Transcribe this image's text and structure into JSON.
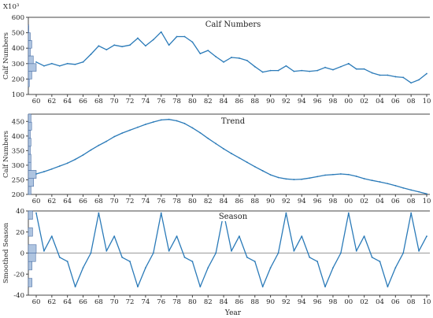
{
  "chart_data": [
    {
      "type": "line",
      "title": "Calf Numbers",
      "ylabel": "Calf Numbers",
      "multiplier_label": "X10³",
      "ylim": [
        100,
        600
      ],
      "yticks": [
        100,
        200,
        300,
        400,
        500,
        600
      ],
      "x": [
        1960,
        1961,
        1962,
        1963,
        1964,
        1965,
        1966,
        1967,
        1968,
        1969,
        1970,
        1971,
        1972,
        1973,
        1974,
        1975,
        1976,
        1977,
        1978,
        1979,
        1980,
        1981,
        1982,
        1983,
        1984,
        1985,
        1986,
        1987,
        1988,
        1989,
        1990,
        1991,
        1992,
        1993,
        1994,
        1995,
        1996,
        1997,
        1998,
        1999,
        2000,
        2001,
        2002,
        2003,
        2004,
        2005,
        2006,
        2007,
        2008,
        2009,
        2010
      ],
      "values": [
        310,
        285,
        300,
        285,
        300,
        295,
        310,
        360,
        415,
        390,
        420,
        410,
        420,
        465,
        415,
        455,
        505,
        420,
        475,
        475,
        440,
        365,
        385,
        345,
        310,
        340,
        335,
        320,
        280,
        245,
        255,
        255,
        285,
        250,
        255,
        250,
        255,
        275,
        260,
        280,
        300,
        265,
        265,
        240,
        225,
        225,
        215,
        210,
        175,
        195,
        235
      ],
      "marginal_histogram": true
    },
    {
      "type": "line",
      "title": "Trend",
      "ylabel": "Calf Numbers",
      "ylim": [
        200,
        475
      ],
      "yticks": [
        200,
        250,
        300,
        350,
        400,
        450
      ],
      "x": [
        1960,
        1961,
        1962,
        1963,
        1964,
        1965,
        1966,
        1967,
        1968,
        1969,
        1970,
        1971,
        1972,
        1973,
        1974,
        1975,
        1976,
        1977,
        1978,
        1979,
        1980,
        1981,
        1982,
        1983,
        1984,
        1985,
        1986,
        1987,
        1988,
        1989,
        1990,
        1991,
        1992,
        1993,
        1994,
        1995,
        1996,
        1997,
        1998,
        1999,
        2000,
        2001,
        2002,
        2003,
        2004,
        2005,
        2006,
        2007,
        2008,
        2009,
        2010
      ],
      "values": [
        270,
        278,
        287,
        297,
        307,
        320,
        335,
        352,
        368,
        382,
        398,
        410,
        420,
        430,
        440,
        448,
        455,
        457,
        452,
        443,
        428,
        411,
        392,
        374,
        356,
        340,
        325,
        310,
        295,
        281,
        267,
        258,
        253,
        251,
        252,
        256,
        261,
        266,
        268,
        270,
        268,
        262,
        254,
        248,
        243,
        237,
        230,
        222,
        215,
        209,
        202
      ],
      "marginal_histogram": true
    },
    {
      "type": "line",
      "title": "Season",
      "ylabel": "Smoothed Season",
      "xlabel": "Year",
      "ylim": [
        -40,
        40
      ],
      "yticks": [
        -40,
        -20,
        0,
        20,
        40
      ],
      "reference_line": 0,
      "x": [
        1960,
        1961,
        1962,
        1963,
        1964,
        1965,
        1966,
        1967,
        1968,
        1969,
        1970,
        1971,
        1972,
        1973,
        1974,
        1975,
        1976,
        1977,
        1978,
        1979,
        1980,
        1981,
        1982,
        1983,
        1984,
        1985,
        1986,
        1987,
        1988,
        1989,
        1990,
        1991,
        1992,
        1993,
        1994,
        1995,
        1996,
        1997,
        1998,
        1999,
        2000,
        2001,
        2002,
        2003,
        2004,
        2005,
        2006,
        2007,
        2008,
        2009,
        2010
      ],
      "values": [
        38,
        2,
        16,
        -4,
        -8,
        -32,
        -14,
        0,
        38,
        2,
        16,
        -4,
        -8,
        -32,
        -14,
        0,
        38,
        2,
        16,
        -4,
        -8,
        -32,
        -14,
        0,
        38,
        2,
        16,
        -4,
        -8,
        -32,
        -14,
        0,
        38,
        2,
        16,
        -4,
        -8,
        -32,
        -14,
        0,
        38,
        2,
        16,
        -4,
        -8,
        -32,
        -14,
        0,
        38,
        2,
        16
      ],
      "marginal_histogram": true
    }
  ],
  "xticks": [
    "60",
    "62",
    "64",
    "66",
    "68",
    "70",
    "72",
    "74",
    "76",
    "78",
    "80",
    "82",
    "84",
    "86",
    "88",
    "90",
    "92",
    "94",
    "96",
    "98",
    "00",
    "02",
    "04",
    "06",
    "08",
    "10"
  ],
  "colors": {
    "line": "#2a7ab8",
    "hist_fill": "#aec4e0",
    "hist_stroke": "#4a6fa5",
    "axis": "#444444",
    "title_band": "#ffffff"
  }
}
